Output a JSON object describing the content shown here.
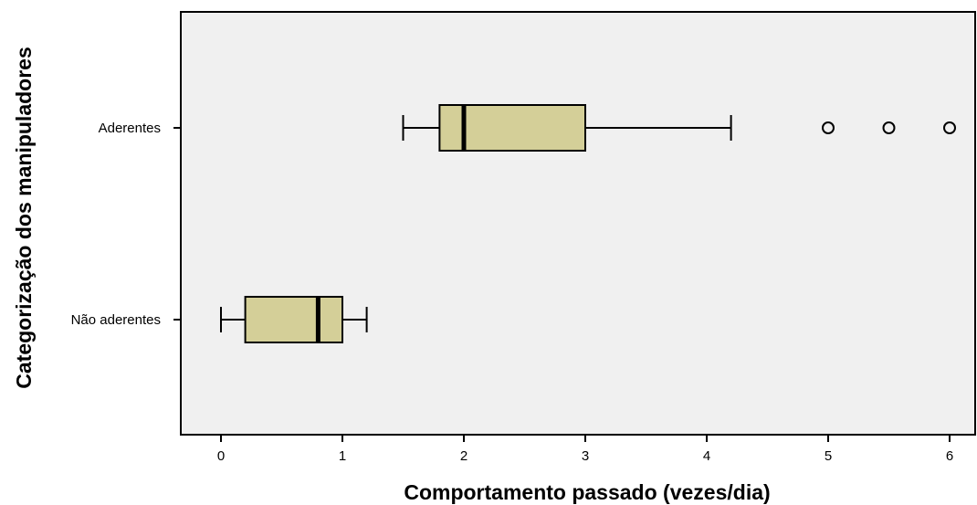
{
  "chart_data": {
    "type": "boxplot",
    "orientation": "horizontal",
    "xlabel": "Comportamento passado (vezes/dia)",
    "ylabel": "Categorização dos manipuladores",
    "xlim": [
      -0.33,
      6.25
    ],
    "xticks": [
      "0",
      "1",
      "2",
      "3",
      "4",
      "5",
      "6"
    ],
    "categories": [
      "Aderentes",
      "Não aderentes"
    ],
    "boxes": [
      {
        "category": "Aderentes",
        "whisker_low": 1.5,
        "q1": 1.8,
        "median": 2.0,
        "q3": 3.0,
        "whisker_high": 4.2,
        "outliers": [
          5.0,
          5.5,
          6.0
        ]
      },
      {
        "category": "Não aderentes",
        "whisker_low": 0.0,
        "q1": 0.2,
        "median": 0.8,
        "q3": 1.0,
        "whisker_high": 1.2,
        "outliers": []
      }
    ],
    "colors": {
      "box_fill": "#d4cf98",
      "plot_background": "#f0f0f0",
      "stroke": "#000000"
    },
    "grid": false,
    "legend": "none"
  }
}
